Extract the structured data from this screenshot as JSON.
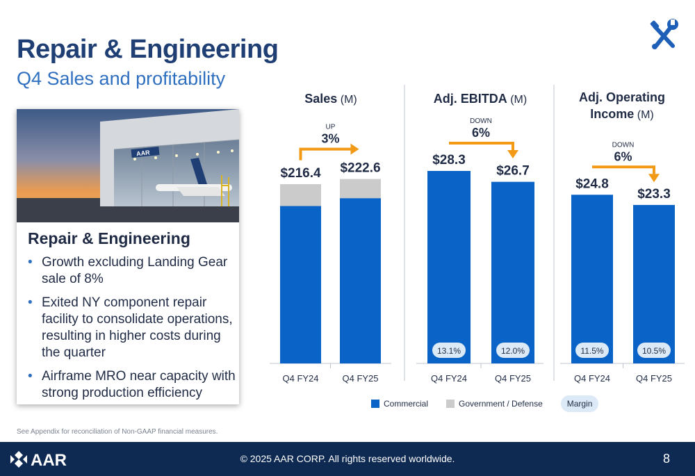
{
  "header": {
    "title": "Repair & Engineering",
    "subtitle": "Q4 Sales and profitability"
  },
  "card": {
    "heading": "Repair & Engineering",
    "bullets": [
      "Growth excluding Landing Gear sale of 8%",
      "Exited NY component repair facility to consolidate operations, resulting in higher costs during the quarter",
      "Airframe MRO near capacity with strong production efficiency"
    ],
    "photo_logo_text": "AAR"
  },
  "footnote": "See Appendix for reconciliation of Non-GAAP financial measures.",
  "footer": {
    "logo_text": "AAR",
    "copyright": "© 2025 AAR CORP. All rights reserved worldwide.",
    "page": "8"
  },
  "legend": {
    "commercial": "Commercial",
    "government": "Government / Defense",
    "margin": "Margin"
  },
  "colors": {
    "commercial": "#0a64c8",
    "government": "#cbcbcb",
    "arrow": "#f29a16",
    "title": "#1e3e74",
    "subtitle": "#2f6fc0",
    "footer": "#0f2a52",
    "margin_pill": "#dce9f6"
  },
  "icons": {
    "top_right": "wrench-screwdriver-icon",
    "footer_logo": "aar-logo"
  },
  "chart_data": [
    {
      "type": "bar",
      "title": "Sales",
      "unit": "(M)",
      "categories": [
        "Q4 FY24",
        "Q4 FY25"
      ],
      "totals": [
        "$216.4",
        "$222.6"
      ],
      "series": [
        {
          "name": "Commercial",
          "values": [
            190.0,
            199.5
          ]
        },
        {
          "name": "Government / Defense",
          "values": [
            26.4,
            23.1
          ]
        }
      ],
      "change": {
        "direction": "UP",
        "pct": "3%"
      },
      "margins": null
    },
    {
      "type": "bar",
      "title": "Adj. EBITDA",
      "unit": "(M)",
      "categories": [
        "Q4 FY24",
        "Q4 FY25"
      ],
      "totals": [
        "$28.3",
        "$26.7"
      ],
      "series": [
        {
          "name": "Commercial",
          "values": [
            28.3,
            26.7
          ]
        }
      ],
      "change": {
        "direction": "DOWN",
        "pct": "6%"
      },
      "margins": [
        "13.1%",
        "12.0%"
      ]
    },
    {
      "type": "bar",
      "title": "Adj. Operating Income",
      "title_lines": [
        "Adj. Operating",
        "Income"
      ],
      "unit": "(M)",
      "categories": [
        "Q4 FY24",
        "Q4 FY25"
      ],
      "totals": [
        "$24.8",
        "$23.3"
      ],
      "series": [
        {
          "name": "Commercial",
          "values": [
            24.8,
            23.3
          ]
        }
      ],
      "change": {
        "direction": "DOWN",
        "pct": "6%"
      },
      "margins": [
        "11.5%",
        "10.5%"
      ]
    }
  ]
}
